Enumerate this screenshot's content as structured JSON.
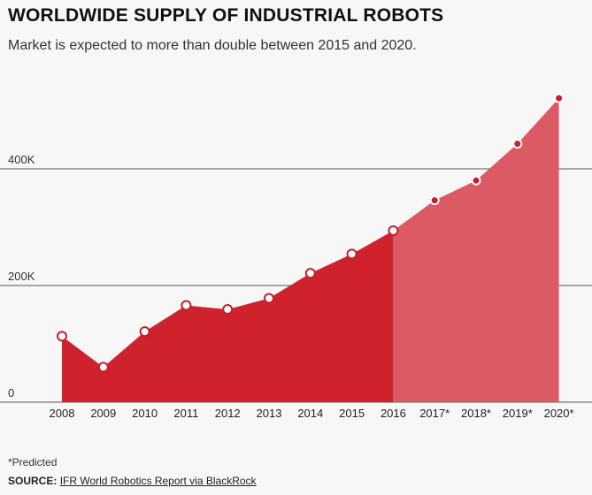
{
  "header": {
    "title": "WORLDWIDE SUPPLY OF INDUSTRIAL ROBOTS",
    "subtitle": "Market is expected to more than double between 2015 and 2020."
  },
  "chart_data": {
    "type": "area",
    "categories": [
      "2008",
      "2009",
      "2010",
      "2011",
      "2012",
      "2013",
      "2014",
      "2015",
      "2016",
      "2017*",
      "2018*",
      "2019*",
      "2020*"
    ],
    "values": [
      113,
      60,
      121,
      166,
      159,
      178,
      221,
      254,
      294,
      346,
      380,
      443,
      521
    ],
    "predicted_from_index": 8,
    "ylim": [
      0,
      560
    ],
    "yticks": [
      {
        "value": 0,
        "label": "0"
      },
      {
        "value": 200,
        "label": "200K"
      },
      {
        "value": 400,
        "label": "400K"
      }
    ],
    "grid": true,
    "title": "WORLDWIDE SUPPLY OF INDUSTRIAL ROBOTS",
    "xlabel": "",
    "ylabel": ""
  },
  "colors": {
    "actual_fill": "#d0222d",
    "predicted_fill": "#dc5a63",
    "marker_fill": "#ffffff",
    "marker_stroke": "#c51f2a",
    "predicted_marker": "#c51f2a",
    "gridline": "#555555"
  },
  "footer": {
    "footnote": "*Predicted",
    "source_label": "SOURCE:",
    "source_text": "IFR World Robotics Report via BlackRock"
  }
}
